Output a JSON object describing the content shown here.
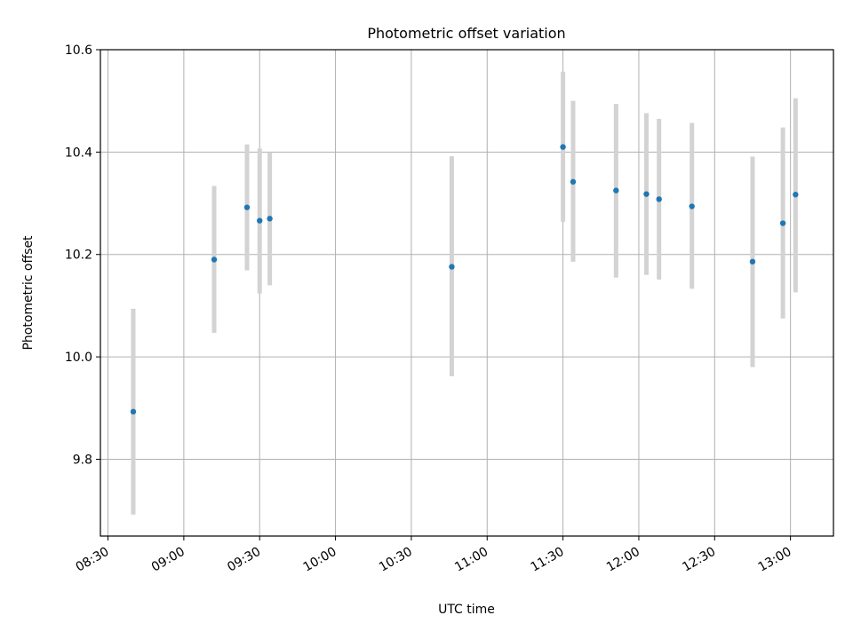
{
  "chart_data": {
    "type": "scatter",
    "title": "Photometric offset variation",
    "xlabel": "UTC time",
    "ylabel": "Photometric offset",
    "x_ticks": [
      "08:30",
      "09:00",
      "09:30",
      "10:00",
      "10:30",
      "11:00",
      "11:30",
      "12:00",
      "12:30",
      "13:00"
    ],
    "y_ticks": [
      "9.8",
      "10.0",
      "10.2",
      "10.4",
      "10.6"
    ],
    "xlim": [
      "08:27",
      "13:17"
    ],
    "ylim": [
      9.65,
      10.6
    ],
    "grid": true,
    "marker_color": "#1f77b4",
    "errorbar_color": "#d3d3d3",
    "points": [
      {
        "time": "08:40",
        "y": 9.893,
        "err_low": 9.692,
        "err_high": 10.094
      },
      {
        "time": "09:12",
        "y": 10.19,
        "err_low": 10.047,
        "err_high": 10.334
      },
      {
        "time": "09:25",
        "y": 10.292,
        "err_low": 10.169,
        "err_high": 10.415
      },
      {
        "time": "09:30",
        "y": 10.266,
        "err_low": 10.124,
        "err_high": 10.407
      },
      {
        "time": "09:34",
        "y": 10.27,
        "err_low": 10.14,
        "err_high": 10.4
      },
      {
        "time": "10:46",
        "y": 10.176,
        "err_low": 9.962,
        "err_high": 10.392
      },
      {
        "time": "11:30",
        "y": 10.41,
        "err_low": 10.264,
        "err_high": 10.557
      },
      {
        "time": "11:34",
        "y": 10.342,
        "err_low": 10.186,
        "err_high": 10.5
      },
      {
        "time": "11:51",
        "y": 10.325,
        "err_low": 10.155,
        "err_high": 10.494
      },
      {
        "time": "12:03",
        "y": 10.318,
        "err_low": 10.16,
        "err_high": 10.476
      },
      {
        "time": "12:08",
        "y": 10.308,
        "err_low": 10.151,
        "err_high": 10.465
      },
      {
        "time": "12:21",
        "y": 10.294,
        "err_low": 10.133,
        "err_high": 10.457
      },
      {
        "time": "12:45",
        "y": 10.186,
        "err_low": 9.98,
        "err_high": 10.391
      },
      {
        "time": "12:57",
        "y": 10.261,
        "err_low": 10.075,
        "err_high": 10.448
      },
      {
        "time": "13:02",
        "y": 10.317,
        "err_low": 10.126,
        "err_high": 10.505
      }
    ]
  }
}
